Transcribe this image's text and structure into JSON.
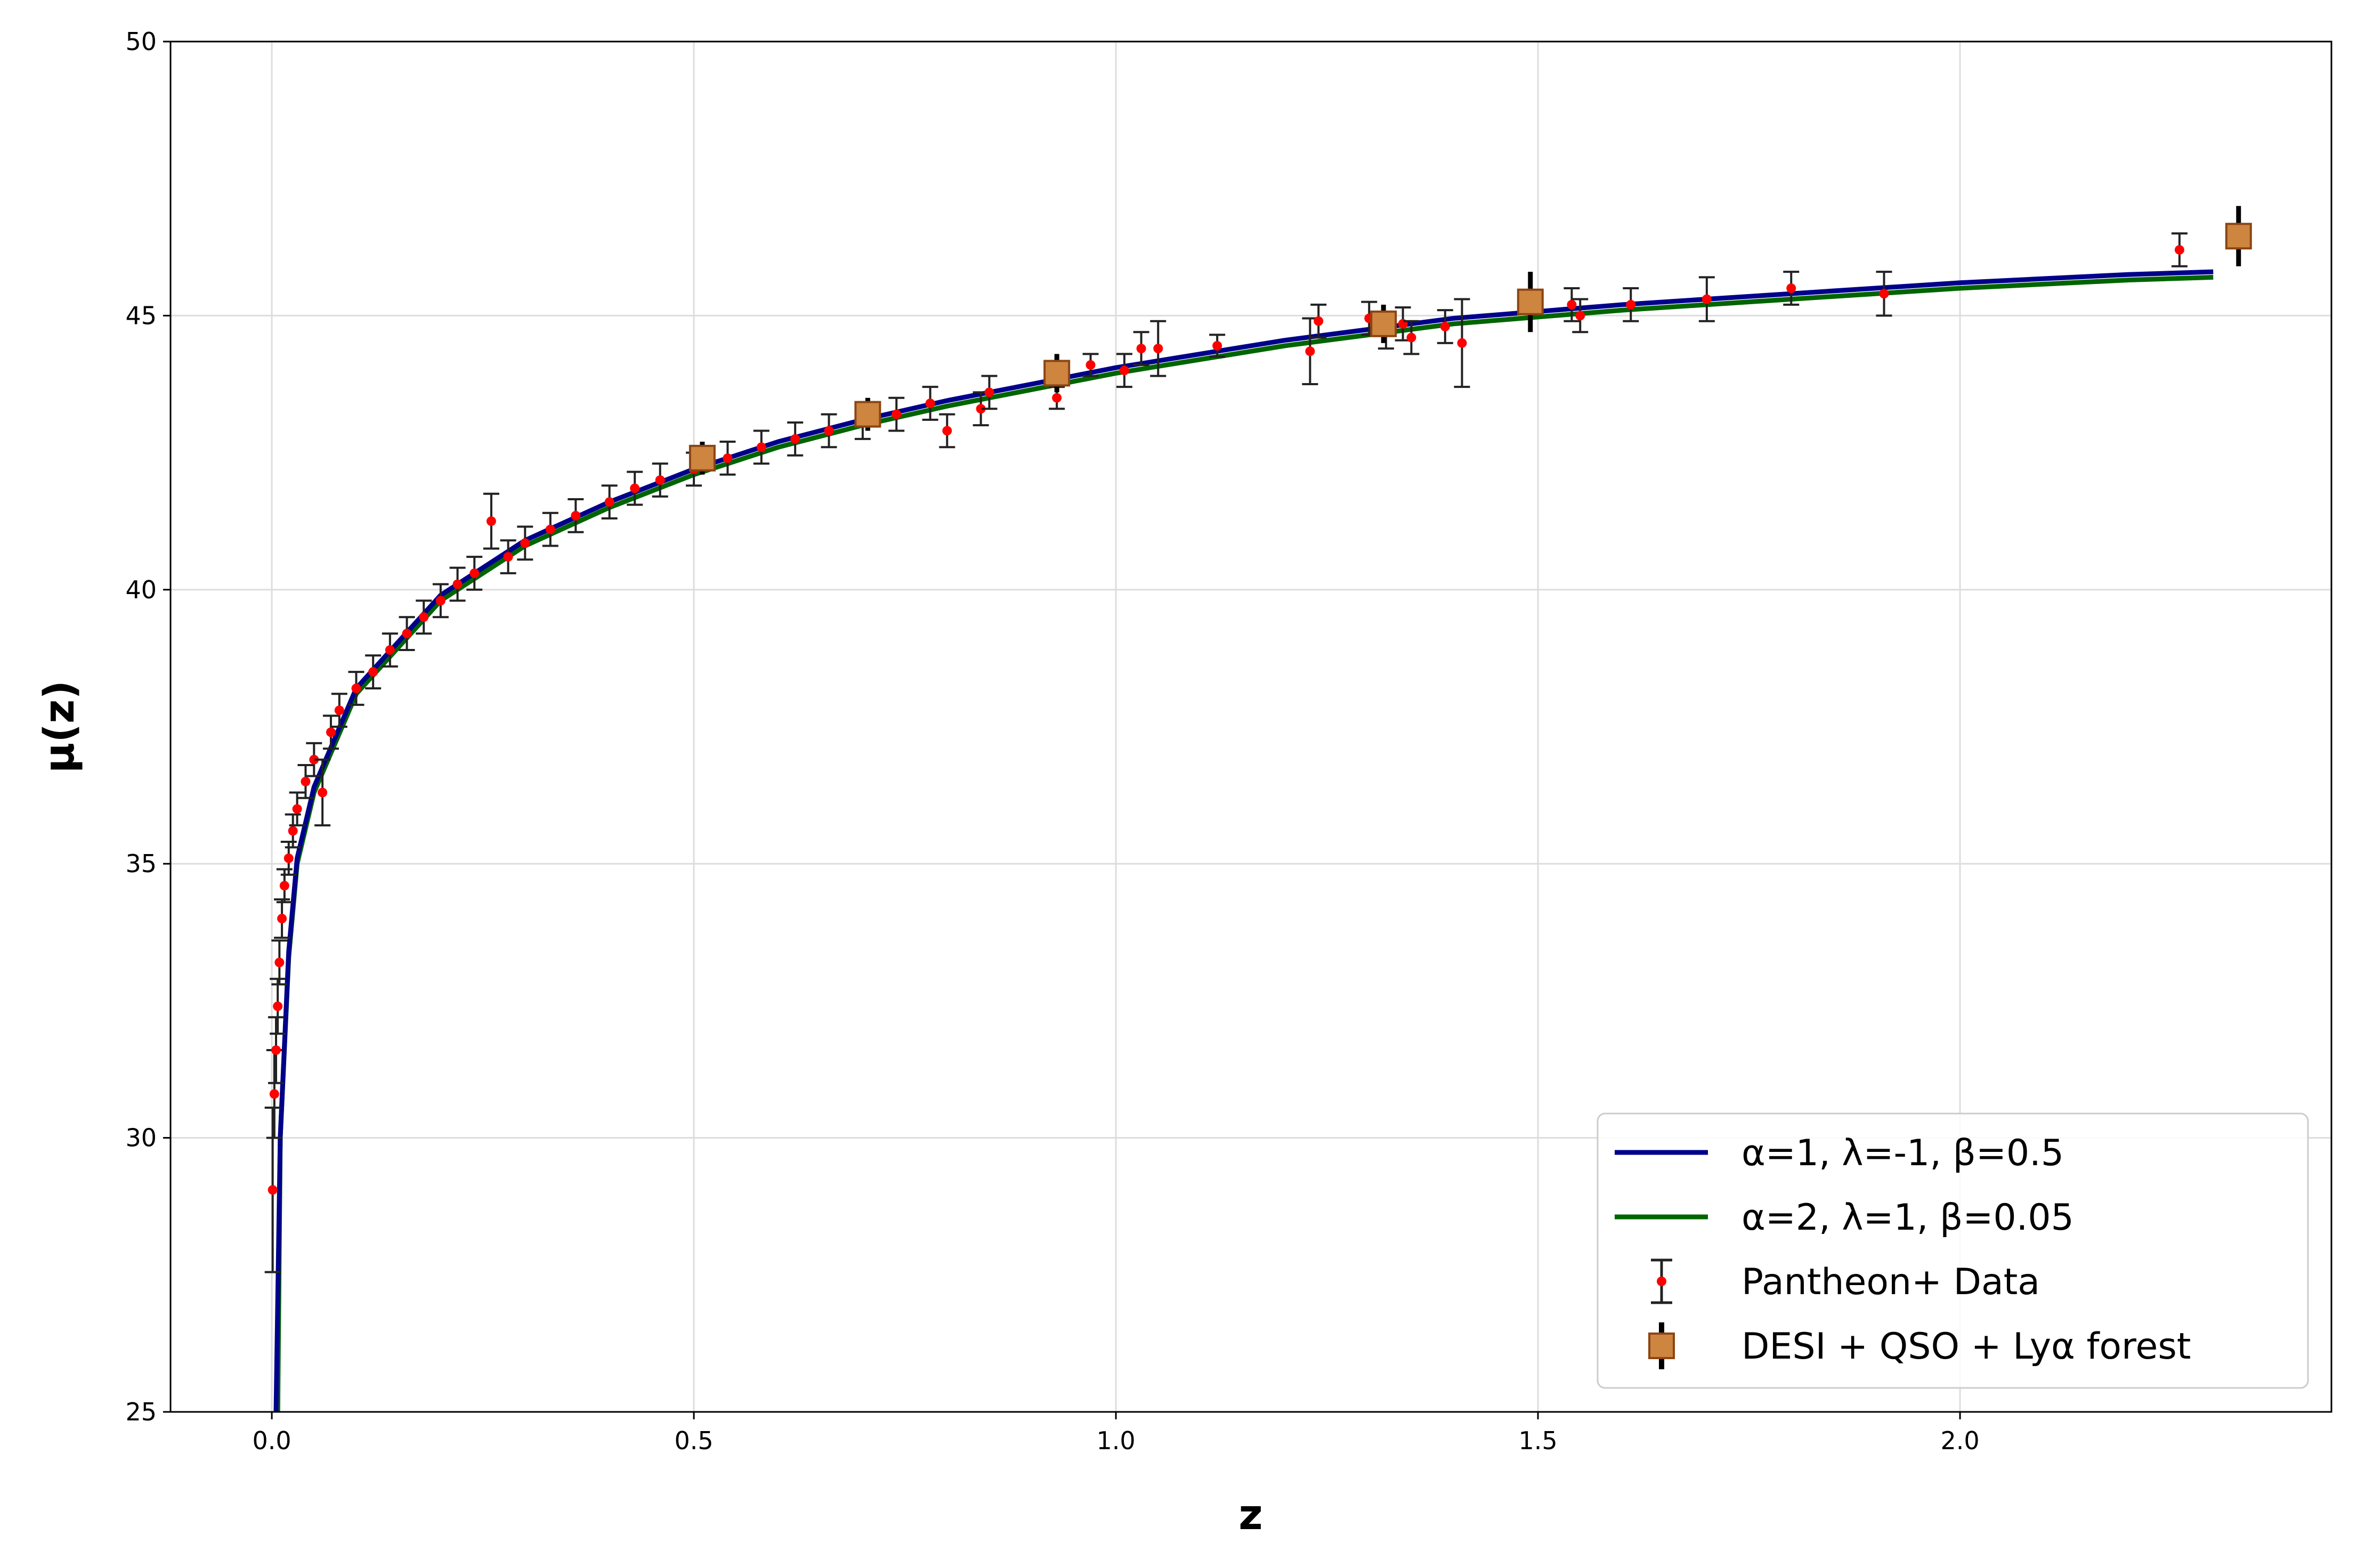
{
  "chart_data": {
    "type": "scatter",
    "xlabel": "z",
    "ylabel": "μ(z)",
    "xlim": [
      -0.12,
      2.44
    ],
    "ylim": [
      25,
      50
    ],
    "x_ticks": [
      "0.0",
      "0.5",
      "1.0",
      "1.5",
      "2.0"
    ],
    "y_ticks": [
      "25",
      "30",
      "35",
      "40",
      "45",
      "50"
    ],
    "grid": true,
    "legend_position": "lower-right",
    "colors": {
      "model_1": "#00008b",
      "model_2": "#006400",
      "pantheon_marker": "#ff0000",
      "pantheon_errorbar": "#222222",
      "desi_marker": "#cd853f",
      "desi_edge": "#8b4513"
    },
    "series": [
      {
        "name": "α=1, λ=-1, β=0.5",
        "kind": "line",
        "x": [
          0.005,
          0.01,
          0.02,
          0.03,
          0.05,
          0.1,
          0.2,
          0.3,
          0.4,
          0.5,
          0.6,
          0.7,
          0.8,
          0.9,
          1.0,
          1.2,
          1.4,
          1.6,
          1.8,
          2.0,
          2.2,
          2.3
        ],
        "y": [
          25.0,
          30.0,
          33.4,
          35.1,
          36.4,
          38.2,
          39.9,
          40.9,
          41.6,
          42.2,
          42.7,
          43.1,
          43.45,
          43.75,
          44.05,
          44.55,
          44.95,
          45.2,
          45.4,
          45.6,
          45.75,
          45.8
        ]
      },
      {
        "name": "α=2, λ=1, β=0.05",
        "kind": "line",
        "x": [
          0.007,
          0.01,
          0.02,
          0.03,
          0.05,
          0.1,
          0.2,
          0.3,
          0.4,
          0.5,
          0.6,
          0.7,
          0.8,
          0.9,
          1.0,
          1.2,
          1.4,
          1.6,
          1.8,
          2.0,
          2.2,
          2.3
        ],
        "y": [
          25.0,
          30.0,
          33.3,
          35.0,
          36.3,
          38.1,
          39.8,
          40.8,
          41.5,
          42.1,
          42.6,
          43.0,
          43.35,
          43.65,
          43.95,
          44.45,
          44.85,
          45.1,
          45.3,
          45.5,
          45.65,
          45.7
        ]
      },
      {
        "name": "Pantheon+ Data",
        "kind": "errorbar",
        "points": [
          [
            0.001,
            29.05,
            1.5
          ],
          [
            0.003,
            30.8,
            0.8
          ],
          [
            0.005,
            31.6,
            0.6
          ],
          [
            0.007,
            32.4,
            0.5
          ],
          [
            0.009,
            33.2,
            0.4
          ],
          [
            0.012,
            34.0,
            0.35
          ],
          [
            0.015,
            34.6,
            0.3
          ],
          [
            0.02,
            35.1,
            0.3
          ],
          [
            0.025,
            35.6,
            0.3
          ],
          [
            0.03,
            36.0,
            0.3
          ],
          [
            0.04,
            36.5,
            0.3
          ],
          [
            0.05,
            36.9,
            0.3
          ],
          [
            0.06,
            36.3,
            0.6
          ],
          [
            0.07,
            37.4,
            0.3
          ],
          [
            0.08,
            37.8,
            0.3
          ],
          [
            0.1,
            38.2,
            0.3
          ],
          [
            0.12,
            38.5,
            0.3
          ],
          [
            0.14,
            38.9,
            0.3
          ],
          [
            0.16,
            39.2,
            0.3
          ],
          [
            0.18,
            39.5,
            0.3
          ],
          [
            0.2,
            39.8,
            0.3
          ],
          [
            0.22,
            40.1,
            0.3
          ],
          [
            0.24,
            40.3,
            0.3
          ],
          [
            0.26,
            41.25,
            0.5
          ],
          [
            0.28,
            40.6,
            0.3
          ],
          [
            0.3,
            40.85,
            0.3
          ],
          [
            0.33,
            41.1,
            0.3
          ],
          [
            0.36,
            41.35,
            0.3
          ],
          [
            0.4,
            41.6,
            0.3
          ],
          [
            0.43,
            41.85,
            0.3
          ],
          [
            0.46,
            42.0,
            0.3
          ],
          [
            0.5,
            42.2,
            0.3
          ],
          [
            0.54,
            42.4,
            0.3
          ],
          [
            0.58,
            42.6,
            0.3
          ],
          [
            0.62,
            42.75,
            0.3
          ],
          [
            0.66,
            42.9,
            0.3
          ],
          [
            0.7,
            43.05,
            0.3
          ],
          [
            0.74,
            43.2,
            0.3
          ],
          [
            0.78,
            43.4,
            0.3
          ],
          [
            0.8,
            42.9,
            0.3
          ],
          [
            0.84,
            43.3,
            0.3
          ],
          [
            0.85,
            43.6,
            0.3
          ],
          [
            0.93,
            43.5,
            0.2
          ],
          [
            0.97,
            44.1,
            0.2
          ],
          [
            1.01,
            44.0,
            0.3
          ],
          [
            1.03,
            44.4,
            0.3
          ],
          [
            1.05,
            44.4,
            0.5
          ],
          [
            1.12,
            44.45,
            0.2
          ],
          [
            1.23,
            44.35,
            0.6
          ],
          [
            1.24,
            44.9,
            0.3
          ],
          [
            1.3,
            44.95,
            0.3
          ],
          [
            1.32,
            44.7,
            0.3
          ],
          [
            1.34,
            44.85,
            0.3
          ],
          [
            1.35,
            44.6,
            0.3
          ],
          [
            1.39,
            44.8,
            0.3
          ],
          [
            1.41,
            44.5,
            0.8
          ],
          [
            1.54,
            45.2,
            0.3
          ],
          [
            1.55,
            45.0,
            0.3
          ],
          [
            1.61,
            45.2,
            0.3
          ],
          [
            1.7,
            45.3,
            0.4
          ],
          [
            1.8,
            45.5,
            0.3
          ],
          [
            1.91,
            45.4,
            0.4
          ],
          [
            2.26,
            46.2,
            0.3
          ]
        ]
      },
      {
        "name": "DESI + QSO + Lyα forest",
        "kind": "errorbar",
        "points": [
          [
            0.51,
            42.4,
            0.3
          ],
          [
            0.706,
            43.2,
            0.3
          ],
          [
            0.93,
            43.95,
            0.35
          ],
          [
            1.317,
            44.85,
            0.35
          ],
          [
            1.491,
            45.25,
            0.55
          ],
          [
            2.33,
            46.45,
            0.55
          ]
        ]
      }
    ]
  }
}
